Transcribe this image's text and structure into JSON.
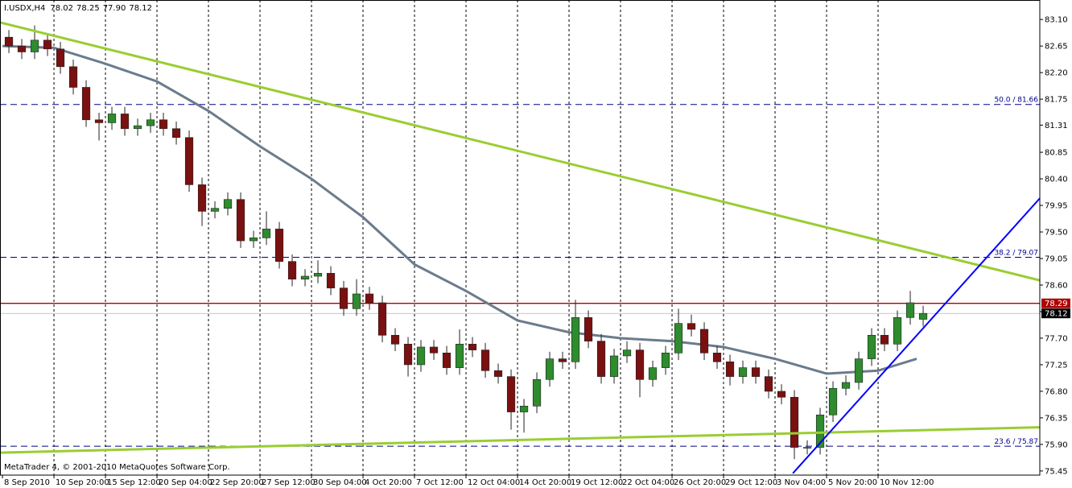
{
  "chart_data": {
    "type": "candlestick",
    "title": "I.USDX,H4",
    "header_ohlc": [
      "78.02",
      "78.25",
      "77.90",
      "78.12"
    ],
    "footer": "MetaTrader 4, © 2001-2010 MetaQuotes Software Corp.",
    "bull_color": "#2e8b2e",
    "bear_color": "#7a1010",
    "wick_color": "#222222",
    "grid": true,
    "xlim": [
      -0.19,
      80.56
    ],
    "ylim": [
      75.38,
      83.43
    ],
    "xticks": [
      {
        "value": 0,
        "label": "8 Sep 2010"
      },
      {
        "value": 4,
        "label": "10 Sep 20:00"
      },
      {
        "value": 8,
        "label": "15 Sep 12:00"
      },
      {
        "value": 12,
        "label": "20 Sep 04:00"
      },
      {
        "value": 16,
        "label": "22 Sep 20:00"
      },
      {
        "value": 20,
        "label": "27 Sep 12:00"
      },
      {
        "value": 24,
        "label": "30 Sep 04:00"
      },
      {
        "value": 28,
        "label": "4 Oct 20:00"
      },
      {
        "value": 32,
        "label": "7 Oct 12:00"
      },
      {
        "value": 36,
        "label": "12 Oct 04:00"
      },
      {
        "value": 40,
        "label": "14 Oct 20:00"
      },
      {
        "value": 44,
        "label": "19 Oct 12:00"
      },
      {
        "value": 48,
        "label": "22 Oct 04:00"
      },
      {
        "value": 52,
        "label": "26 Oct 20:00"
      },
      {
        "value": 56,
        "label": "29 Oct 12:00"
      },
      {
        "value": 60,
        "label": "3 Nov 04:00"
      },
      {
        "value": 64,
        "label": "5 Nov 20:00"
      },
      {
        "value": 68,
        "label": "10 Nov 12:00"
      }
    ],
    "yticks": [
      {
        "value": 83.1,
        "label": "83.10"
      },
      {
        "value": 82.65,
        "label": "82.65"
      },
      {
        "value": 82.2,
        "label": "82.20"
      },
      {
        "value": 81.75,
        "label": "81.75"
      },
      {
        "value": 81.31,
        "label": "81.31"
      },
      {
        "value": 80.85,
        "label": "80.85"
      },
      {
        "value": 80.4,
        "label": "80.40"
      },
      {
        "value": 79.95,
        "label": "79.95"
      },
      {
        "value": 79.5,
        "label": "79.50"
      },
      {
        "value": 79.05,
        "label": "79.05"
      },
      {
        "value": 78.6,
        "label": "78.60"
      },
      {
        "value": 78.15,
        "label": "78.15"
      },
      {
        "value": 77.7,
        "label": "77.70"
      },
      {
        "value": 77.25,
        "label": "77.25"
      },
      {
        "value": 76.8,
        "label": "76.80"
      },
      {
        "value": 76.35,
        "label": "76.35"
      },
      {
        "value": 75.9,
        "label": "75.90"
      },
      {
        "value": 75.45,
        "label": "75.45"
      }
    ],
    "open": [
      82.8,
      82.65,
      82.55,
      82.75,
      82.6,
      82.3,
      81.95,
      81.4,
      81.35,
      81.5,
      81.25,
      81.3,
      81.4,
      81.25,
      81.1,
      80.3,
      79.85,
      79.9,
      80.05,
      79.35,
      79.4,
      79.55,
      79.0,
      78.7,
      78.75,
      78.8,
      78.55,
      78.2,
      78.45,
      78.3,
      77.75,
      77.6,
      77.25,
      77.55,
      77.45,
      77.2,
      77.6,
      77.5,
      77.15,
      77.05,
      76.45,
      76.55,
      77.0,
      77.35,
      77.3,
      78.05,
      77.65,
      77.05,
      77.4,
      77.5,
      77.0,
      77.2,
      77.45,
      77.95,
      77.85,
      77.45,
      77.3,
      77.05,
      77.2,
      77.05,
      76.8,
      76.7,
      75.85,
      75.85,
      76.4,
      76.85,
      76.95,
      77.35,
      77.75,
      77.6,
      78.05,
      78.02
    ],
    "high": [
      82.92,
      82.77,
      83.0,
      82.87,
      82.72,
      82.42,
      82.07,
      81.52,
      81.62,
      81.62,
      81.42,
      81.52,
      81.52,
      81.37,
      81.22,
      80.42,
      80.02,
      80.17,
      80.17,
      79.52,
      79.85,
      79.67,
      79.12,
      78.87,
      79.02,
      78.92,
      78.67,
      78.7,
      78.57,
      78.42,
      77.87,
      77.72,
      77.67,
      77.67,
      77.57,
      77.85,
      77.72,
      77.62,
      77.27,
      77.17,
      76.67,
      77.12,
      77.47,
      77.47,
      78.35,
      78.17,
      77.77,
      77.52,
      77.65,
      77.62,
      77.32,
      77.57,
      78.2,
      78.1,
      77.97,
      77.57,
      77.42,
      77.32,
      77.32,
      77.17,
      76.92,
      76.82,
      75.97,
      76.52,
      76.97,
      77.07,
      77.47,
      77.87,
      77.87,
      78.17,
      78.5,
      78.25
    ],
    "low": [
      82.53,
      82.43,
      82.43,
      82.48,
      82.18,
      81.83,
      81.28,
      81.05,
      81.23,
      81.13,
      81.13,
      81.18,
      81.13,
      80.98,
      80.18,
      79.6,
      79.73,
      79.78,
      79.23,
      79.23,
      79.28,
      78.88,
      78.58,
      78.58,
      78.63,
      78.43,
      78.08,
      78.08,
      78.18,
      77.63,
      77.48,
      77.05,
      77.13,
      77.33,
      77.08,
      77.08,
      77.38,
      77.03,
      76.93,
      76.15,
      76.1,
      76.43,
      76.88,
      77.18,
      77.18,
      77.53,
      76.93,
      76.93,
      77.28,
      76.7,
      76.88,
      77.08,
      77.33,
      77.73,
      77.33,
      77.18,
      76.9,
      76.93,
      76.93,
      76.68,
      76.58,
      75.65,
      75.73,
      75.73,
      76.28,
      76.73,
      76.83,
      77.23,
      77.48,
      77.48,
      77.93,
      77.9
    ],
    "close": [
      82.65,
      82.55,
      82.75,
      82.6,
      82.3,
      81.95,
      81.4,
      81.35,
      81.5,
      81.25,
      81.3,
      81.4,
      81.25,
      81.1,
      80.3,
      79.85,
      79.9,
      80.05,
      79.35,
      79.4,
      79.55,
      79.0,
      78.7,
      78.75,
      78.8,
      78.55,
      78.2,
      78.45,
      78.3,
      77.75,
      77.6,
      77.25,
      77.55,
      77.45,
      77.2,
      77.6,
      77.5,
      77.15,
      77.05,
      76.45,
      76.55,
      77.0,
      77.35,
      77.3,
      78.05,
      77.65,
      77.05,
      77.4,
      77.5,
      77.0,
      77.2,
      77.45,
      77.95,
      77.85,
      77.45,
      77.3,
      77.05,
      77.2,
      77.05,
      76.8,
      76.7,
      75.85,
      75.85,
      76.4,
      76.85,
      76.95,
      77.35,
      77.75,
      77.6,
      78.05,
      78.3,
      78.12
    ],
    "ma": {
      "color": "#6b7b8c",
      "x": [
        0,
        4,
        8,
        12,
        16,
        20,
        24,
        28,
        32,
        36,
        40,
        44,
        48,
        52,
        56,
        60,
        64,
        68,
        71
      ],
      "values": [
        82.65,
        82.62,
        82.35,
        82.05,
        81.55,
        80.95,
        80.4,
        79.75,
        78.95,
        78.5,
        78.0,
        77.8,
        77.7,
        77.65,
        77.55,
        77.35,
        77.1,
        77.15,
        77.35
      ]
    },
    "trendlines": [
      {
        "color": "#9acd32",
        "x": [
          -0.19,
          80.56
        ],
        "values": [
          83.05,
          78.68
        ]
      },
      {
        "color": "#9acd32",
        "x": [
          -0.19,
          80.56
        ],
        "values": [
          75.76,
          76.19
        ]
      },
      {
        "color": "#0000ff",
        "x": [
          61.38,
          80.56
        ],
        "values": [
          75.41,
          80.07
        ]
      }
    ],
    "fibo": {
      "color": "#00008b",
      "levels": [
        {
          "value": 81.66,
          "label": "50.0 / 81.66"
        },
        {
          "value": 79.07,
          "label": "38.2 / 79.07"
        },
        {
          "value": 75.87,
          "label": "23.6 / 75.87"
        }
      ]
    },
    "price_markers": [
      {
        "value": 78.29,
        "label": "78.29",
        "color": "#b00000"
      },
      {
        "value": 78.12,
        "label": "78.12",
        "color": "#000000"
      }
    ]
  }
}
